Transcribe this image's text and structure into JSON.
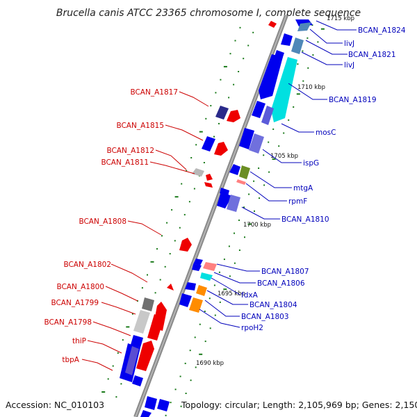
{
  "title": "Brucella canis ATCC 23365 chromosome I, complete sequence",
  "footer": {
    "accession": "Accession: NC_010103",
    "summary": "Topology: circular; Length: 2,105,969 bp; Genes: 2,150"
  },
  "scale_labels": [
    "1715 kbp",
    "1710 kbp",
    "1705 kbp",
    "1700 kbp",
    "1695 kbp",
    "1690 kbp"
  ],
  "colors": {
    "backbone": "#8a8a8a",
    "reverse_label": "#cc0000",
    "forward_label": "#0000bb",
    "tick": "#1a7a1a",
    "cds_forward": "#0000ee",
    "cds_reverse": "#ee0000",
    "cds_alt_forward": "#7070dd",
    "cds_grey": "#b8b8b8",
    "trna": "#ff8c00",
    "cyan": "#00e0e0",
    "steel": "#4f88b8",
    "olive": "#6b8e23"
  },
  "genes_right": [
    {
      "label": "BCAN_A1824"
    },
    {
      "label": "livJ"
    },
    {
      "label": "BCAN_A1821"
    },
    {
      "label": "livJ"
    },
    {
      "label": "BCAN_A1819"
    },
    {
      "label": "mosC"
    },
    {
      "label": "ispG"
    },
    {
      "label": "mtgA"
    },
    {
      "label": "rpmF"
    },
    {
      "label": "BCAN_A1810"
    },
    {
      "label": "BCAN_A1807"
    },
    {
      "label": "BCAN_A1806"
    },
    {
      "label": "fdxA"
    },
    {
      "label": "BCAN_A1804"
    },
    {
      "label": "BCAN_A1803"
    },
    {
      "label": "rpoH2"
    }
  ],
  "genes_left": [
    {
      "label": "BCAN_A1817"
    },
    {
      "label": "BCAN_A1815"
    },
    {
      "label": "BCAN_A1812"
    },
    {
      "label": "BCAN_A1811"
    },
    {
      "label": "BCAN_A1808"
    },
    {
      "label": "BCAN_A1802"
    },
    {
      "label": "BCAN_A1800"
    },
    {
      "label": "BCAN_A1799"
    },
    {
      "label": "BCAN_A1798"
    },
    {
      "label": "thiP"
    },
    {
      "label": "tbpA"
    }
  ]
}
